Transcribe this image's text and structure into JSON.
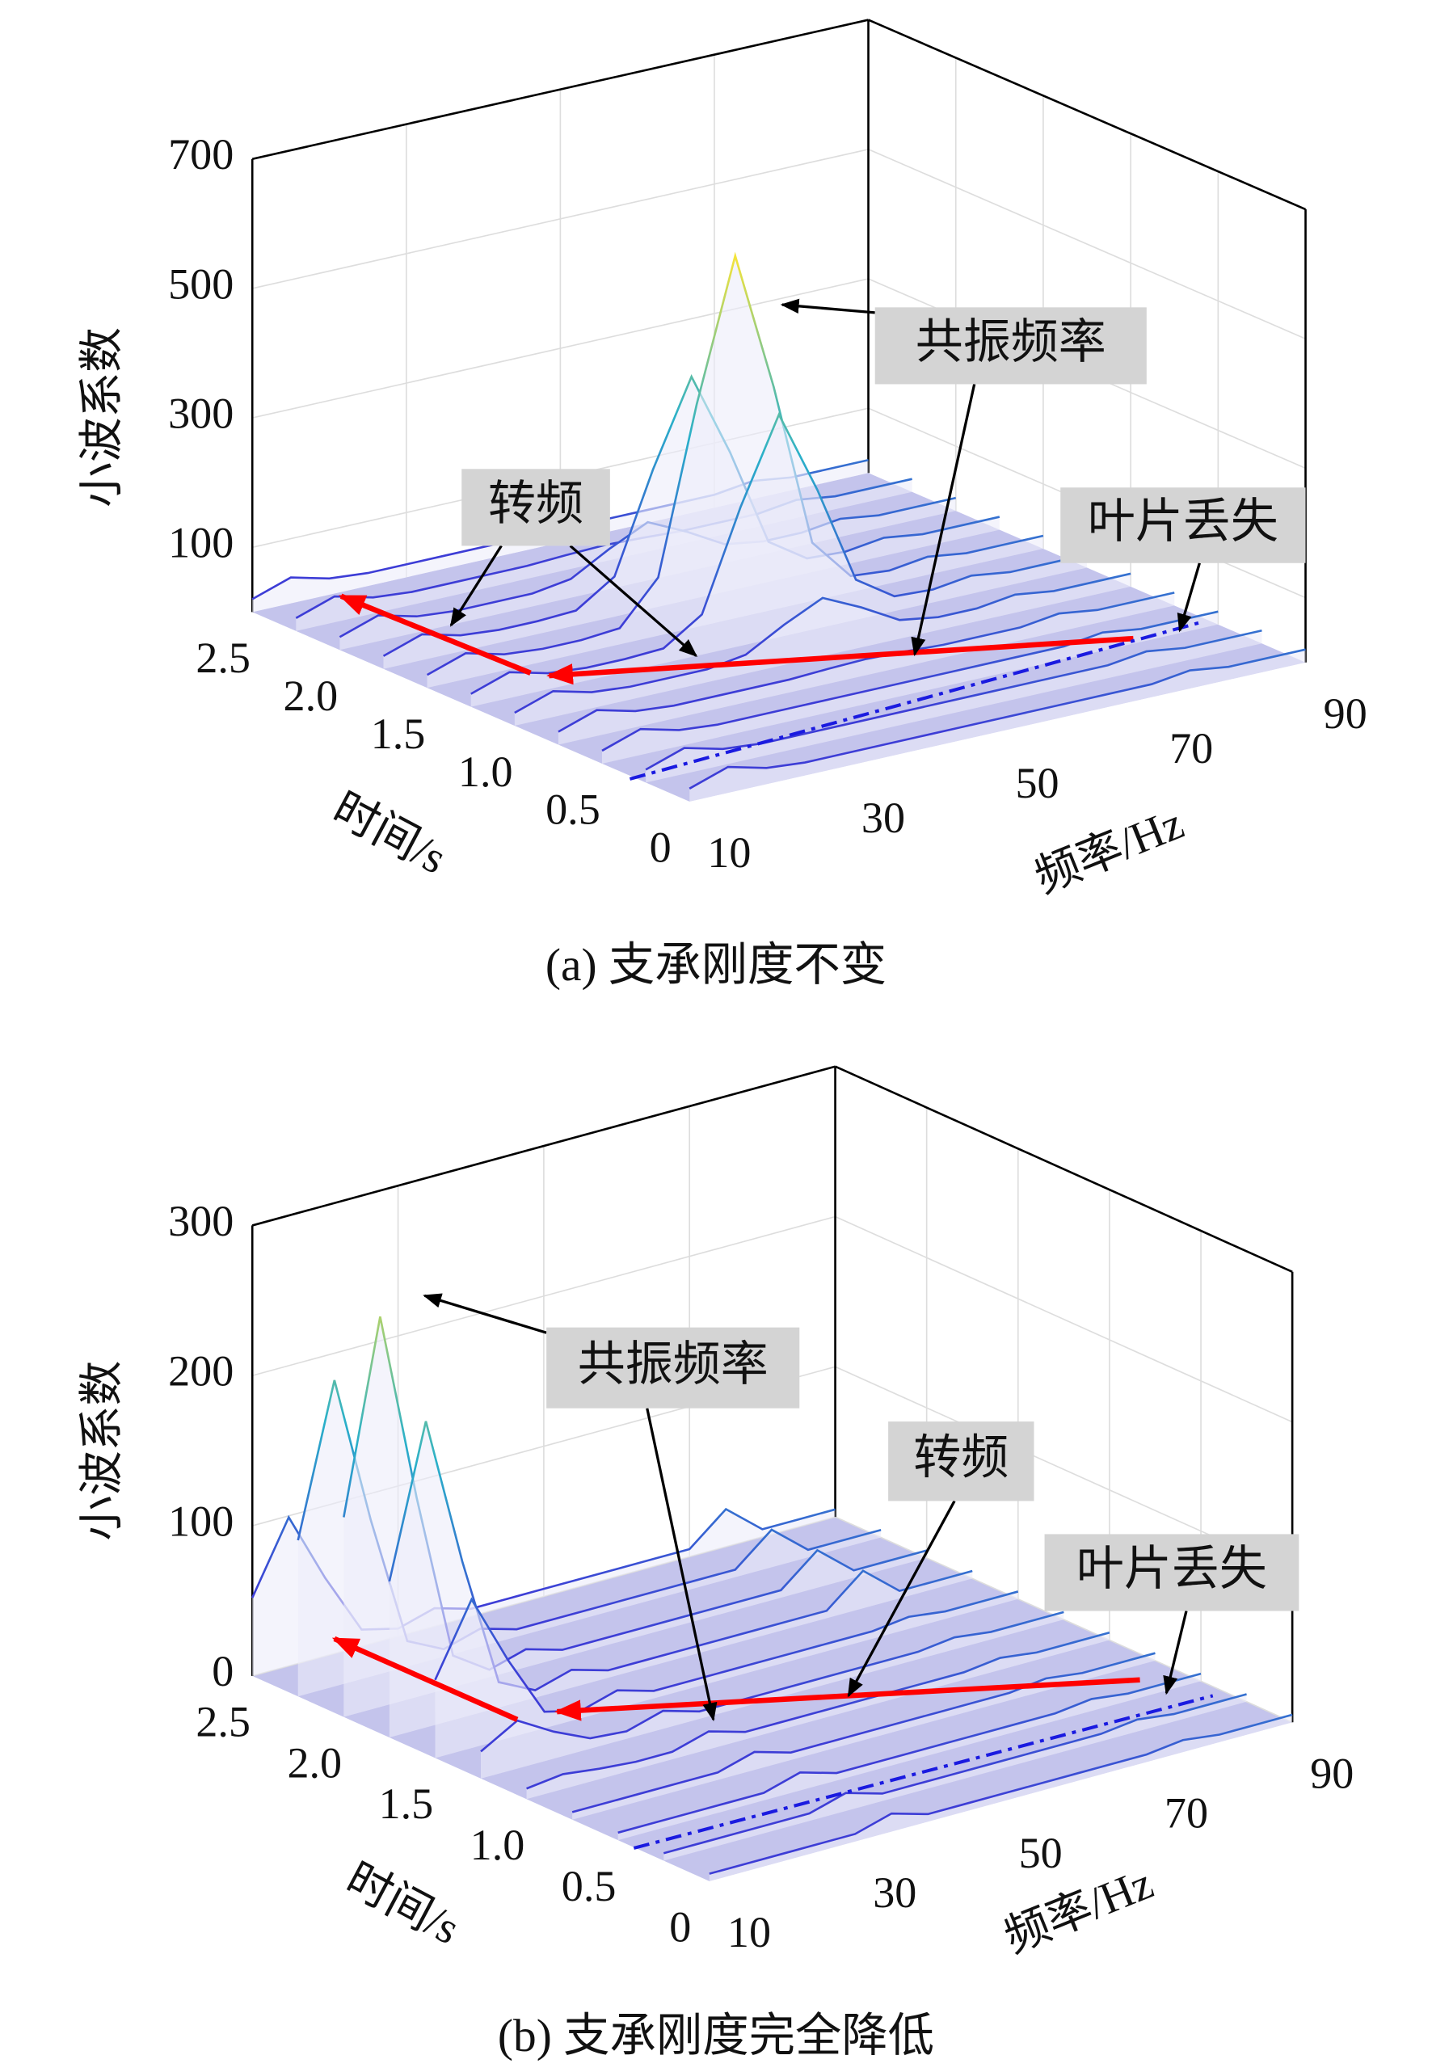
{
  "chart_data": [
    {
      "type": "waterfall3d",
      "caption": "(a) 支承刚度不变",
      "z_label": "小波系数",
      "x_label": "时间/s",
      "y_label": "频率/Hz",
      "colormap": [
        "#3d3dd6",
        "#2ab0c9",
        "#f5e43a"
      ],
      "time": [
        0,
        0.25,
        0.5,
        0.75,
        1,
        1.25,
        1.5,
        1.75,
        2,
        2.25,
        2.5
      ],
      "frequency": [
        10,
        15,
        20,
        25,
        30,
        35,
        40,
        45,
        50,
        55,
        60,
        65,
        70,
        75,
        80,
        85,
        90
      ],
      "values": [
        [
          20,
          40,
          25,
          20,
          20,
          20,
          20,
          20,
          20,
          20,
          20,
          20,
          20,
          28,
          20,
          20,
          20
        ],
        [
          20,
          40,
          25,
          20,
          20,
          20,
          20,
          20,
          20,
          20,
          20,
          20,
          20,
          28,
          20,
          20,
          20
        ],
        [
          20,
          40,
          25,
          20,
          20,
          20,
          20,
          20,
          20,
          20,
          20,
          20,
          20,
          28,
          20,
          20,
          20
        ],
        [
          20,
          40,
          25,
          20,
          20,
          20,
          20,
          23,
          25,
          23,
          20,
          20,
          20,
          28,
          20,
          20,
          20
        ],
        [
          20,
          40,
          25,
          20,
          20,
          20,
          29,
          62,
          90,
          62,
          29,
          20,
          20,
          28,
          20,
          20,
          20
        ],
        [
          20,
          40,
          25,
          20,
          20,
          23,
          62,
          214,
          344,
          214,
          62,
          23,
          20,
          28,
          20,
          20,
          20
        ],
        [
          20,
          40,
          25,
          20,
          20,
          25,
          90,
          344,
          560,
          344,
          90,
          25,
          20,
          28,
          20,
          20,
          20
        ],
        [
          20,
          40,
          25,
          20,
          20,
          23,
          62,
          214,
          344,
          214,
          62,
          23,
          20,
          28,
          20,
          20,
          20
        ],
        [
          20,
          40,
          25,
          20,
          20,
          20,
          29,
          62,
          90,
          62,
          29,
          20,
          20,
          28,
          20,
          20,
          20
        ],
        [
          20,
          40,
          25,
          20,
          20,
          20,
          20,
          23,
          25,
          23,
          20,
          20,
          20,
          28,
          20,
          20,
          20
        ],
        [
          20,
          40,
          25,
          20,
          20,
          20,
          20,
          20,
          20,
          20,
          20,
          20,
          20,
          28,
          20,
          20,
          20
        ]
      ],
      "xlim": [
        0,
        2.5
      ],
      "xticks": [
        0,
        0.5,
        {
          "value": 1,
          "label": "1.0"
        },
        1.5,
        {
          "value": 2,
          "label": "2.0"
        },
        2.5
      ],
      "ylim": [
        10,
        90
      ],
      "yticks": [
        10,
        30,
        50,
        70,
        90
      ],
      "zlim": [
        0,
        700
      ],
      "zticks": [
        100,
        300,
        500,
        700
      ],
      "grid": true,
      "annotations": [
        {
          "text": "共振频率"
        },
        {
          "text": "转频"
        },
        {
          "text": "叶片丢失"
        }
      ]
    },
    {
      "type": "waterfall3d",
      "caption": "(b) 支承刚度完全降低",
      "z_label": "小波系数",
      "x_label": "时间/s",
      "y_label": "频率/Hz",
      "colormap": [
        "#3d3dd6",
        "#2ab0c9",
        "#f5e43a"
      ],
      "time": [
        0,
        0.25,
        0.5,
        0.75,
        1,
        1.25,
        1.5,
        1.75,
        2,
        2.25,
        2.5
      ],
      "frequency": [
        10,
        15,
        20,
        25,
        30,
        35,
        40,
        45,
        50,
        55,
        60,
        65,
        70,
        75,
        80,
        85,
        90
      ],
      "values": [
        [
          5,
          5,
          5,
          5,
          5,
          12,
          5,
          5,
          5,
          5,
          5,
          5,
          5,
          8,
          5,
          5,
          5
        ],
        [
          5,
          5,
          5,
          5,
          5,
          12,
          5,
          5,
          5,
          5,
          5,
          5,
          5,
          8,
          5,
          5,
          5
        ],
        [
          5,
          5,
          5,
          5,
          5,
          12,
          5,
          5,
          5,
          5,
          5,
          5,
          5,
          8,
          5,
          5,
          5
        ],
        [
          5,
          5,
          5,
          5,
          5,
          12,
          5,
          5,
          5,
          5,
          5,
          5,
          5,
          8,
          5,
          5,
          5
        ],
        [
          7,
          10,
          7,
          5,
          5,
          12,
          5,
          5,
          5,
          5,
          5,
          5,
          5,
          8,
          5,
          5,
          5
        ],
        [
          18,
          32,
          18,
          7,
          5,
          12,
          5,
          5,
          5,
          5,
          5,
          5,
          5,
          8,
          5,
          5,
          5
        ],
        [
          52,
          99,
          52,
          11,
          5,
          12,
          5,
          5,
          5,
          5,
          5,
          5,
          5,
          8,
          5,
          5,
          5
        ],
        [
          104,
          204,
          104,
          17,
          5,
          12,
          5,
          5,
          5,
          5,
          5,
          5,
          5,
          25,
          5,
          5,
          5
        ],
        [
          133,
          260,
          133,
          21,
          5,
          12,
          5,
          5,
          5,
          5,
          5,
          5,
          5,
          25,
          5,
          5,
          5
        ],
        [
          104,
          204,
          104,
          17,
          5,
          12,
          5,
          5,
          5,
          5,
          5,
          5,
          5,
          25,
          5,
          5,
          5
        ],
        [
          52,
          99,
          52,
          11,
          5,
          12,
          5,
          5,
          5,
          5,
          5,
          5,
          5,
          25,
          5,
          5,
          5
        ]
      ],
      "xlim": [
        0,
        2.5
      ],
      "xticks": [
        0,
        0.5,
        {
          "value": 1,
          "label": "1.0"
        },
        1.5,
        {
          "value": 2,
          "label": "2.0"
        },
        2.5
      ],
      "ylim": [
        10,
        90
      ],
      "yticks": [
        10,
        30,
        50,
        70,
        90
      ],
      "zlim": [
        0,
        300
      ],
      "zticks": [
        0,
        100,
        200,
        300
      ],
      "grid": true,
      "annotations": [
        {
          "text": "共振频率"
        },
        {
          "text": "转频"
        },
        {
          "text": "叶片丢失"
        }
      ]
    }
  ]
}
